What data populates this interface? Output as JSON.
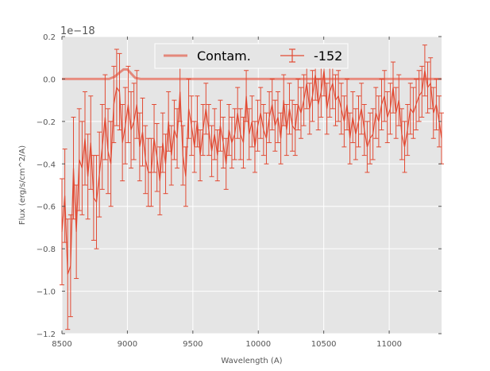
{
  "colors": {
    "background": "#ffffff",
    "plot_face": "#e5e5e5",
    "grid": "#ffffff",
    "series": "#e24a33",
    "contam": "#e24a33",
    "tick_text": "#555555"
  },
  "chart_data": {
    "type": "line",
    "xlabel": "Wavelength (A)",
    "ylabel": "Flux (erg/s/cm^2/A)",
    "offset_text": "1e−18",
    "xlim": [
      8500,
      11400
    ],
    "ylim": [
      -1.2,
      0.2
    ],
    "grid": true,
    "legend_position": "top-center",
    "xticks": [
      8500,
      9000,
      9500,
      10000,
      10500,
      11000
    ],
    "xtick_labels": [
      "8500",
      "9000",
      "9500",
      "10000",
      "10500",
      "11000"
    ],
    "yticks": [
      0.2,
      0.0,
      -0.2,
      -0.4,
      -0.6,
      -0.8,
      -1.0,
      -1.2
    ],
    "ytick_labels": [
      "0.2",
      "0.0",
      "−0.2",
      "−0.4",
      "−0.6",
      "−0.8",
      "−1.0",
      "−1.2"
    ],
    "series": [
      {
        "name": "-152",
        "style": "errorbar",
        "x": [
          8500,
          8522,
          8544,
          8566,
          8588,
          8610,
          8632,
          8654,
          8676,
          8698,
          8720,
          8742,
          8764,
          8786,
          8808,
          8830,
          8852,
          8874,
          8896,
          8918,
          8940,
          8962,
          8984,
          9006,
          9028,
          9050,
          9072,
          9094,
          9116,
          9138,
          9160,
          9182,
          9204,
          9226,
          9248,
          9270,
          9292,
          9314,
          9336,
          9358,
          9380,
          9402,
          9424,
          9446,
          9468,
          9490,
          9512,
          9534,
          9556,
          9578,
          9600,
          9622,
          9644,
          9666,
          9688,
          9710,
          9732,
          9754,
          9776,
          9798,
          9820,
          9842,
          9864,
          9886,
          9908,
          9930,
          9952,
          9974,
          9996,
          10018,
          10040,
          10062,
          10084,
          10106,
          10128,
          10150,
          10172,
          10194,
          10216,
          10238,
          10260,
          10282,
          10304,
          10326,
          10348,
          10370,
          10392,
          10414,
          10436,
          10458,
          10480,
          10502,
          10524,
          10546,
          10568,
          10590,
          10612,
          10634,
          10656,
          10678,
          10700,
          10722,
          10744,
          10766,
          10788,
          10810,
          10832,
          10854,
          10876,
          10898,
          10920,
          10942,
          10964,
          10986,
          11008,
          11030,
          11052,
          11074,
          11096,
          11118,
          11140,
          11162,
          11184,
          11206,
          11228,
          11250,
          11272,
          11294,
          11316,
          11338,
          11360,
          11382,
          11400
        ],
        "y": [
          -0.72,
          -0.55,
          -0.92,
          -0.88,
          -0.42,
          -0.72,
          -0.38,
          -0.42,
          -0.28,
          -0.46,
          -0.3,
          -0.56,
          -0.58,
          -0.45,
          -0.32,
          -0.18,
          -0.34,
          -0.4,
          -0.12,
          -0.04,
          -0.06,
          -0.3,
          -0.22,
          -0.12,
          -0.24,
          -0.2,
          -0.12,
          -0.32,
          -0.25,
          -0.38,
          -0.44,
          -0.44,
          -0.28,
          -0.37,
          -0.48,
          -0.3,
          -0.4,
          -0.2,
          -0.36,
          -0.24,
          -0.28,
          -0.06,
          -0.36,
          -0.46,
          -0.14,
          -0.22,
          -0.32,
          -0.2,
          -0.36,
          -0.24,
          -0.14,
          -0.24,
          -0.34,
          -0.26,
          -0.36,
          -0.22,
          -0.3,
          -0.4,
          -0.24,
          -0.3,
          -0.26,
          -0.16,
          -0.26,
          -0.3,
          -0.08,
          -0.26,
          -0.2,
          -0.32,
          -0.22,
          -0.16,
          -0.24,
          -0.28,
          -0.18,
          -0.12,
          -0.22,
          -0.18,
          -0.28,
          -0.1,
          -0.24,
          -0.14,
          -0.22,
          -0.24,
          -0.12,
          -0.16,
          -0.1,
          -0.02,
          -0.14,
          -0.08,
          0.02,
          -0.12,
          -0.06,
          0.04,
          -0.14,
          -0.06,
          -0.02,
          -0.1,
          -0.08,
          -0.14,
          -0.2,
          -0.12,
          -0.28,
          -0.18,
          -0.26,
          -0.2,
          -0.14,
          -0.24,
          -0.32,
          -0.28,
          -0.26,
          -0.16,
          -0.2,
          -0.12,
          -0.08,
          -0.18,
          -0.14,
          -0.04,
          -0.16,
          -0.1,
          -0.26,
          -0.32,
          -0.24,
          -0.14,
          -0.16,
          -0.12,
          -0.08,
          -0.06,
          0.04,
          -0.04,
          -0.02,
          -0.16,
          -0.12,
          -0.2,
          -0.28
        ],
        "yerr": [
          0.25,
          0.22,
          0.26,
          0.24,
          0.24,
          0.22,
          0.24,
          0.22,
          0.22,
          0.2,
          0.22,
          0.2,
          0.22,
          0.2,
          0.2,
          0.2,
          0.2,
          0.2,
          0.18,
          0.18,
          0.18,
          0.18,
          0.18,
          0.18,
          0.18,
          0.18,
          0.16,
          0.16,
          0.16,
          0.16,
          0.16,
          0.16,
          0.16,
          0.16,
          0.16,
          0.14,
          0.14,
          0.14,
          0.14,
          0.14,
          0.14,
          0.14,
          0.14,
          0.14,
          0.14,
          0.14,
          0.12,
          0.12,
          0.12,
          0.12,
          0.12,
          0.12,
          0.12,
          0.12,
          0.12,
          0.12,
          0.12,
          0.12,
          0.12,
          0.12,
          0.12,
          0.12,
          0.12,
          0.12,
          0.12,
          0.12,
          0.12,
          0.12,
          0.12,
          0.12,
          0.12,
          0.12,
          0.12,
          0.12,
          0.12,
          0.12,
          0.12,
          0.12,
          0.12,
          0.12,
          0.12,
          0.12,
          0.12,
          0.12,
          0.12,
          0.12,
          0.12,
          0.12,
          0.12,
          0.12,
          0.12,
          0.12,
          0.12,
          0.12,
          0.12,
          0.12,
          0.12,
          0.12,
          0.12,
          0.12,
          0.12,
          0.12,
          0.12,
          0.12,
          0.12,
          0.12,
          0.12,
          0.12,
          0.12,
          0.12,
          0.12,
          0.12,
          0.12,
          0.12,
          0.12,
          0.12,
          0.12,
          0.12,
          0.12,
          0.12,
          0.12,
          0.12,
          0.12,
          0.12,
          0.12,
          0.12,
          0.12,
          0.12,
          0.12,
          0.12,
          0.12,
          0.12,
          0.12
        ]
      },
      {
        "name": "Contam.",
        "style": "line",
        "x": [
          8500,
          8860,
          8900,
          8940,
          8970,
          9000,
          9030,
          9060,
          9100,
          11400
        ],
        "y": [
          0.0,
          0.0,
          0.01,
          0.03,
          0.045,
          0.045,
          0.025,
          0.005,
          0.0,
          0.0
        ]
      }
    ]
  }
}
